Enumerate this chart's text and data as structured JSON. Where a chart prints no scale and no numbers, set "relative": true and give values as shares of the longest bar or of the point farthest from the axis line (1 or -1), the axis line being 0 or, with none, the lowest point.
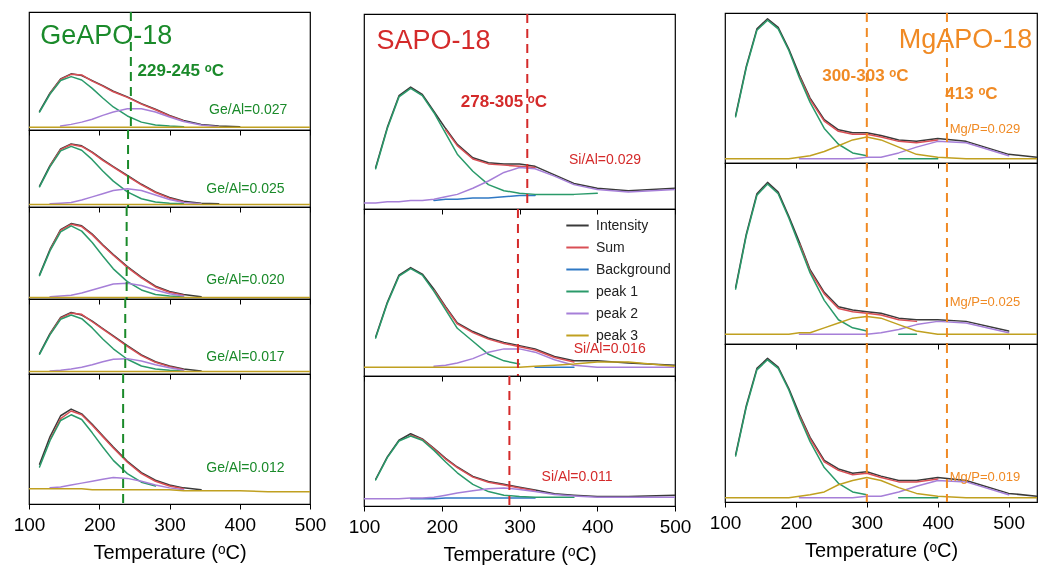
{
  "chart_data": [
    {
      "type": "line",
      "relative": true,
      "title": "GeAPO-18",
      "annotations": [
        "229-245 ᵒC",
        "Ge/Al=0.027"
      ],
      "x": [
        100,
        115,
        130,
        145,
        160,
        175,
        190,
        205,
        220,
        240,
        260,
        280,
        300,
        320,
        345,
        370,
        400,
        440,
        500
      ],
      "xlim": [
        100,
        500
      ],
      "xticks": [
        100,
        200,
        300,
        400,
        500
      ],
      "tick_labels": false,
      "ref_lines": [
        {
          "axis": "x",
          "value": 245,
          "color": "#1a8a2a",
          "line_style": "dashed"
        }
      ],
      "series": [
        {
          "color": "#3a3a3a",
          "values": [
            null,
            0.33,
            0.66,
            0.91,
            1.0,
            0.97,
            0.88,
            0.79,
            0.69,
            0.59,
            0.47,
            0.37,
            0.26,
            0.17,
            0.1,
            0.07,
            0.06,
            null,
            null
          ]
        },
        {
          "color": "#d94f55",
          "values": [
            null,
            null,
            0.65,
            0.9,
            0.99,
            0.98,
            0.87,
            0.78,
            0.68,
            0.58,
            0.46,
            0.36,
            0.25,
            0.16,
            null,
            null,
            null,
            null,
            null
          ]
        },
        {
          "color": "#2a9a6a",
          "values": [
            null,
            0.32,
            0.64,
            0.88,
            0.95,
            0.89,
            0.74,
            0.57,
            0.41,
            0.25,
            0.14,
            0.09,
            0.07,
            0.06,
            null,
            null,
            null,
            null,
            null
          ]
        },
        {
          "color": "#a67fd8",
          "values": [
            null,
            null,
            null,
            0.07,
            0.1,
            0.14,
            0.19,
            0.26,
            0.32,
            0.38,
            0.38,
            0.32,
            0.23,
            0.15,
            0.09,
            0.06,
            null,
            null,
            null
          ]
        },
        {
          "color": "#c0a020",
          "values": [
            0.05,
            0.05,
            0.05,
            0.05,
            0.05,
            0.05,
            0.05,
            0.05,
            0.05,
            0.05,
            0.05,
            0.05,
            0.05,
            0.05,
            0.05,
            0.05,
            0.05,
            0.05,
            0.05
          ]
        }
      ]
    },
    {
      "type": "line",
      "relative": true,
      "annotations": [
        "Ge/Al=0.025"
      ],
      "x": [
        100,
        115,
        130,
        145,
        160,
        175,
        190,
        205,
        220,
        240,
        260,
        280,
        300,
        320,
        345,
        370,
        400,
        440,
        500
      ],
      "xlim": [
        100,
        500
      ],
      "xticks": [
        100,
        200,
        300,
        400,
        500
      ],
      "tick_labels": false,
      "ref_lines": [
        {
          "axis": "x",
          "value": 241,
          "color": "#1a8a2a",
          "line_style": "dashed"
        }
      ],
      "series": [
        {
          "color": "#3a3a3a",
          "values": [
            null,
            0.33,
            0.66,
            0.92,
            1.0,
            0.97,
            0.87,
            0.75,
            0.64,
            0.5,
            0.36,
            0.24,
            0.15,
            0.09,
            0.06,
            0.05,
            null,
            null,
            null
          ]
        },
        {
          "color": "#d94f55",
          "values": [
            null,
            null,
            0.65,
            0.91,
            0.99,
            0.96,
            0.86,
            0.74,
            0.63,
            0.49,
            0.35,
            0.23,
            0.14,
            0.08,
            null,
            null,
            null,
            null,
            null
          ]
        },
        {
          "color": "#2a9a6a",
          "values": [
            null,
            0.32,
            0.64,
            0.89,
            0.96,
            0.9,
            0.75,
            0.57,
            0.41,
            0.24,
            0.13,
            0.08,
            0.06,
            0.05,
            null,
            null,
            null,
            null,
            null
          ]
        },
        {
          "color": "#a67fd8",
          "values": [
            null,
            null,
            0.05,
            0.06,
            0.07,
            0.11,
            0.16,
            0.21,
            0.26,
            0.29,
            0.26,
            0.19,
            0.12,
            0.07,
            0.05,
            null,
            null,
            null,
            null
          ]
        },
        {
          "color": "#c0a020",
          "values": [
            0.04,
            0.04,
            0.04,
            0.04,
            0.04,
            0.04,
            0.04,
            0.04,
            0.04,
            0.04,
            0.04,
            0.04,
            0.04,
            0.04,
            0.04,
            0.04,
            0.04,
            0.04,
            0.04
          ]
        }
      ]
    },
    {
      "type": "line",
      "relative": true,
      "annotations": [
        "Ge/Al=0.020"
      ],
      "x": [
        100,
        115,
        130,
        145,
        160,
        175,
        190,
        205,
        220,
        240,
        260,
        280,
        300,
        320,
        345,
        370,
        400,
        440,
        500
      ],
      "xlim": [
        100,
        500
      ],
      "xticks": [
        100,
        200,
        300,
        400,
        500
      ],
      "tick_labels": false,
      "ref_lines": [
        {
          "axis": "x",
          "value": 239,
          "color": "#1a8a2a",
          "line_style": "dashed"
        }
      ],
      "series": [
        {
          "color": "#3a3a3a",
          "values": [
            null,
            0.32,
            0.66,
            0.92,
            1.0,
            0.97,
            0.86,
            0.72,
            0.59,
            0.43,
            0.29,
            0.17,
            0.1,
            0.06,
            0.03,
            null,
            null,
            null,
            null
          ]
        },
        {
          "color": "#d94f55",
          "values": [
            null,
            null,
            0.65,
            0.91,
            0.99,
            0.96,
            0.85,
            0.71,
            0.58,
            0.42,
            0.28,
            0.16,
            0.09,
            0.05,
            null,
            null,
            null,
            null,
            null
          ]
        },
        {
          "color": "#2a9a6a",
          "values": [
            null,
            0.31,
            0.64,
            0.89,
            0.97,
            0.9,
            0.75,
            0.57,
            0.4,
            0.23,
            0.12,
            0.06,
            0.04,
            0.03,
            null,
            null,
            null,
            null,
            null
          ]
        },
        {
          "color": "#a67fd8",
          "values": [
            null,
            null,
            0.03,
            0.04,
            0.05,
            0.08,
            0.12,
            0.16,
            0.2,
            0.21,
            0.18,
            0.12,
            0.07,
            0.04,
            null,
            null,
            null,
            null,
            null
          ]
        },
        {
          "color": "#c0a020",
          "values": [
            0.02,
            0.02,
            0.02,
            0.02,
            0.02,
            0.02,
            0.02,
            0.02,
            0.02,
            0.02,
            0.02,
            0.02,
            0.02,
            0.02,
            0.02,
            0.02,
            0.02,
            0.02,
            0.02
          ]
        }
      ]
    },
    {
      "type": "line",
      "relative": true,
      "annotations": [
        "Ge/Al=0.017"
      ],
      "x": [
        100,
        115,
        130,
        145,
        160,
        175,
        190,
        205,
        220,
        240,
        260,
        280,
        300,
        320,
        345,
        370,
        400,
        440,
        500
      ],
      "xlim": [
        100,
        500
      ],
      "xticks": [
        100,
        200,
        300,
        400,
        500
      ],
      "tick_labels": false,
      "ref_lines": [
        {
          "axis": "x",
          "value": 237,
          "color": "#1a8a2a",
          "line_style": "dashed"
        }
      ],
      "series": [
        {
          "color": "#3a3a3a",
          "values": [
            null,
            0.33,
            0.66,
            0.92,
            1.0,
            0.96,
            0.86,
            0.74,
            0.62,
            0.46,
            0.31,
            0.2,
            0.13,
            0.08,
            0.05,
            null,
            null,
            null,
            null
          ]
        },
        {
          "color": "#d94f55",
          "values": [
            null,
            null,
            0.65,
            0.91,
            0.99,
            0.97,
            0.85,
            0.73,
            0.61,
            0.45,
            0.3,
            0.19,
            0.12,
            0.07,
            null,
            null,
            null,
            null,
            null
          ]
        },
        {
          "color": "#2a9a6a",
          "values": [
            null,
            0.32,
            0.64,
            0.89,
            0.96,
            0.9,
            0.75,
            0.57,
            0.41,
            0.24,
            0.13,
            0.08,
            0.06,
            0.05,
            null,
            null,
            null,
            null,
            null
          ]
        },
        {
          "color": "#a67fd8",
          "values": [
            null,
            null,
            0.05,
            0.06,
            0.08,
            0.11,
            0.15,
            0.2,
            0.24,
            0.25,
            0.21,
            0.15,
            0.1,
            0.06,
            null,
            null,
            null,
            null,
            null
          ]
        },
        {
          "color": "#c0a020",
          "values": [
            0.04,
            0.04,
            0.04,
            0.04,
            0.04,
            0.04,
            0.04,
            0.04,
            0.04,
            0.04,
            0.04,
            0.04,
            0.04,
            0.04,
            0.04,
            0.04,
            0.04,
            0.04,
            0.04
          ]
        }
      ]
    },
    {
      "type": "line",
      "relative": true,
      "annotations": [
        "Ge/Al=0.012"
      ],
      "x": [
        100,
        115,
        130,
        145,
        160,
        175,
        190,
        205,
        220,
        240,
        260,
        280,
        300,
        320,
        345,
        370,
        400,
        440,
        500
      ],
      "xlim": [
        100,
        500
      ],
      "xticks": [
        100,
        200,
        300,
        400,
        500
      ],
      "tick_labels": "x",
      "xlabel": "Temperature (ᵒC)",
      "ref_lines": [
        {
          "axis": "x",
          "value": 234,
          "color": "#1a8a2a",
          "line_style": "dashed"
        }
      ],
      "series": [
        {
          "color": "#3a3a3a",
          "values": [
            null,
            0.42,
            0.71,
            0.93,
            1.0,
            0.95,
            0.84,
            0.72,
            0.6,
            0.45,
            0.33,
            0.25,
            0.2,
            0.17,
            0.15,
            null,
            null,
            null,
            null
          ]
        },
        {
          "color": "#d94f55",
          "values": [
            null,
            null,
            0.68,
            0.9,
            0.98,
            0.94,
            0.83,
            0.71,
            0.59,
            0.44,
            0.32,
            0.24,
            0.19,
            0.16,
            null,
            null,
            null,
            null,
            null
          ]
        },
        {
          "color": "#2a9a6a",
          "values": [
            null,
            0.39,
            0.67,
            0.88,
            0.94,
            0.89,
            0.75,
            0.6,
            0.46,
            0.32,
            0.23,
            0.19,
            null,
            null,
            null,
            null,
            null,
            null,
            null
          ]
        },
        {
          "color": "#a67fd8",
          "values": [
            null,
            null,
            0.17,
            0.18,
            0.2,
            0.22,
            0.24,
            0.26,
            0.28,
            0.27,
            0.24,
            0.2,
            0.17,
            0.15,
            null,
            null,
            null,
            null,
            null
          ]
        },
        {
          "color": "#c0a020",
          "values": [
            0.16,
            0.16,
            0.16,
            0.16,
            0.16,
            0.16,
            0.15,
            0.15,
            0.15,
            0.15,
            0.15,
            0.15,
            0.15,
            0.14,
            0.14,
            0.14,
            0.14,
            0.13,
            0.13
          ]
        }
      ]
    },
    {
      "type": "line",
      "relative": true,
      "title": "SAPO-18",
      "annotations": [
        "278-305 ᵒC",
        "Si/Al=0.029"
      ],
      "x": [
        100,
        115,
        130,
        145,
        160,
        175,
        190,
        205,
        220,
        240,
        260,
        280,
        300,
        320,
        345,
        370,
        400,
        440,
        500
      ],
      "xlim": [
        100,
        500
      ],
      "xticks": [
        100,
        200,
        300,
        400,
        500
      ],
      "tick_labels": false,
      "ref_lines": [
        {
          "axis": "x",
          "value": 310,
          "color": "#d42a2a",
          "line_style": "dashed"
        }
      ],
      "series": [
        {
          "color": "#3a3a3a",
          "values": [
            null,
            0.34,
            0.67,
            0.93,
            1.0,
            0.94,
            0.8,
            0.66,
            0.53,
            0.42,
            0.38,
            0.37,
            0.37,
            0.35,
            0.28,
            0.21,
            0.17,
            0.15,
            0.17
          ]
        },
        {
          "color": "#d94f55",
          "values": [
            null,
            null,
            null,
            null,
            null,
            null,
            null,
            0.65,
            0.52,
            0.41,
            0.37,
            0.36,
            0.35,
            0.34,
            null,
            null,
            null,
            null,
            null
          ]
        },
        {
          "color": "#2f78c4",
          "values": [
            null,
            null,
            null,
            null,
            null,
            null,
            0.07,
            0.08,
            0.08,
            0.09,
            0.09,
            0.1,
            0.11,
            0.11,
            null,
            null,
            null,
            null,
            null
          ]
        },
        {
          "color": "#2a9a6a",
          "values": [
            null,
            0.33,
            0.66,
            0.92,
            0.99,
            0.93,
            0.79,
            0.62,
            0.45,
            0.31,
            0.2,
            0.15,
            0.13,
            0.12,
            0.12,
            0.12,
            0.13,
            null,
            null
          ]
        },
        {
          "color": "#a67fd8",
          "values": [
            0.05,
            0.05,
            0.06,
            0.06,
            0.07,
            0.07,
            0.08,
            0.1,
            0.12,
            0.17,
            0.23,
            0.3,
            0.34,
            0.33,
            0.27,
            0.2,
            0.16,
            0.14,
            0.16
          ]
        }
      ]
    },
    {
      "type": "line",
      "relative": true,
      "annotations": [
        "Si/Al=0.016"
      ],
      "x": [
        100,
        115,
        130,
        145,
        160,
        175,
        190,
        205,
        220,
        240,
        260,
        280,
        300,
        320,
        345,
        370,
        400,
        440,
        500
      ],
      "xlim": [
        100,
        500
      ],
      "xticks": [
        100,
        200,
        300,
        400,
        500
      ],
      "tick_labels": false,
      "legend": "top right",
      "ref_lines": [
        {
          "axis": "x",
          "value": 298,
          "color": "#d42a2a",
          "line_style": "dashed"
        }
      ],
      "series": [
        {
          "name": "Intensity",
          "color": "#3a3a3a",
          "values": [
            null,
            0.36,
            0.68,
            0.93,
            1.0,
            0.94,
            0.8,
            0.64,
            0.49,
            0.41,
            0.35,
            0.31,
            0.28,
            0.25,
            0.18,
            0.14,
            0.14,
            0.12,
            0.1
          ]
        },
        {
          "name": "Sum",
          "color": "#d94f55",
          "values": [
            null,
            null,
            null,
            null,
            null,
            null,
            0.79,
            0.63,
            0.48,
            0.4,
            0.34,
            0.3,
            0.27,
            0.24,
            0.17,
            0.13,
            null,
            null,
            null
          ]
        },
        {
          "name": "Background",
          "color": "#2f78c4",
          "values": [
            null,
            null,
            null,
            null,
            null,
            null,
            null,
            null,
            null,
            null,
            null,
            null,
            null,
            0.08,
            0.08,
            0.08,
            null,
            null,
            null
          ]
        },
        {
          "name": "peak 1",
          "color": "#2a9a6a",
          "values": [
            null,
            0.35,
            0.67,
            0.92,
            0.99,
            0.93,
            0.78,
            0.61,
            0.44,
            0.32,
            0.2,
            0.14,
            0.11,
            null,
            null,
            null,
            null,
            null,
            null
          ]
        },
        {
          "name": "peak 2",
          "color": "#a67fd8",
          "values": [
            null,
            null,
            null,
            null,
            null,
            null,
            0.09,
            0.1,
            0.12,
            0.16,
            0.22,
            0.25,
            0.25,
            0.22,
            0.15,
            0.1,
            0.08,
            0.08,
            0.08
          ]
        },
        {
          "name": "peak 3",
          "color": "#c0a020",
          "values": [
            0.08,
            0.08,
            0.08,
            0.08,
            0.08,
            0.08,
            0.08,
            0.08,
            0.08,
            0.08,
            0.08,
            0.08,
            0.08,
            0.09,
            0.1,
            0.11,
            0.13,
            0.13,
            0.09
          ]
        }
      ]
    },
    {
      "type": "line",
      "relative": true,
      "annotations": [
        "Si/Al=0.011"
      ],
      "x": [
        100,
        115,
        130,
        145,
        160,
        175,
        190,
        205,
        220,
        240,
        260,
        280,
        300,
        320,
        345,
        370,
        400,
        440,
        500
      ],
      "xlim": [
        100,
        500
      ],
      "xticks": [
        100,
        200,
        300,
        400,
        500
      ],
      "tick_labels": "x",
      "xlabel": "Temperature (ᵒC)",
      "ref_lines": [
        {
          "axis": "x",
          "value": 287,
          "color": "#d42a2a",
          "line_style": "dashed"
        }
      ],
      "series": [
        {
          "color": "#3a3a3a",
          "values": [
            null,
            0.37,
            0.68,
            0.91,
            1.0,
            0.93,
            0.8,
            0.66,
            0.54,
            0.41,
            0.34,
            0.3,
            0.26,
            0.22,
            0.17,
            0.15,
            0.13,
            0.13,
            0.15
          ]
        },
        {
          "color": "#d94f55",
          "values": [
            null,
            null,
            null,
            null,
            0.98,
            0.92,
            0.79,
            0.65,
            0.53,
            0.4,
            0.33,
            0.29,
            0.25,
            0.21,
            null,
            null,
            null,
            null,
            null
          ]
        },
        {
          "color": "#2f78c4",
          "values": [
            null,
            null,
            null,
            null,
            0.1,
            0.1,
            0.1,
            0.11,
            0.11,
            0.11,
            0.11,
            0.11,
            0.11,
            0.11,
            null,
            null,
            null,
            null,
            null
          ]
        },
        {
          "color": "#2a9a6a",
          "values": [
            null,
            0.36,
            0.67,
            0.9,
            0.97,
            0.91,
            0.77,
            0.61,
            0.46,
            0.3,
            0.2,
            0.15,
            0.13,
            0.12,
            0.12,
            0.12,
            null,
            null,
            null
          ]
        },
        {
          "color": "#a67fd8",
          "values": [
            0.1,
            0.1,
            0.1,
            0.1,
            0.11,
            0.11,
            0.12,
            0.15,
            0.18,
            0.21,
            0.24,
            0.25,
            0.23,
            0.2,
            0.16,
            0.14,
            0.12,
            0.12,
            0.12
          ]
        }
      ]
    },
    {
      "type": "line",
      "relative": true,
      "title": "MgAPO-18",
      "annotations": [
        "300-303 ᵒC",
        "413 ᵒC",
        "Mg/P=0.029"
      ],
      "x": [
        100,
        115,
        130,
        145,
        160,
        175,
        190,
        205,
        220,
        240,
        260,
        280,
        300,
        320,
        345,
        370,
        400,
        440,
        500,
        540
      ],
      "xlim": [
        100,
        540
      ],
      "xticks": [
        100,
        200,
        300,
        400,
        500
      ],
      "tick_labels": false,
      "ref_lines": [
        {
          "axis": "x",
          "value": 300,
          "color": "#f08a24",
          "line_style": "dashed"
        },
        {
          "axis": "x",
          "value": 413,
          "color": "#f08a24",
          "line_style": "dashed"
        }
      ],
      "series": [
        {
          "color": "#3a3a3a",
          "values": [
            null,
            0.33,
            0.67,
            0.93,
            1.0,
            0.94,
            0.79,
            0.61,
            0.45,
            0.3,
            0.23,
            0.21,
            0.21,
            0.19,
            0.16,
            0.15,
            0.17,
            0.15,
            0.06,
            0.04
          ]
        },
        {
          "color": "#d94f55",
          "values": [
            null,
            null,
            null,
            null,
            null,
            null,
            null,
            0.6,
            0.44,
            0.29,
            0.22,
            0.2,
            0.2,
            0.18,
            0.15,
            0.14,
            0.16,
            null,
            null,
            null
          ]
        },
        {
          "color": "#2a9a6a",
          "values": [
            null,
            0.32,
            0.66,
            0.92,
            0.99,
            0.93,
            0.78,
            0.59,
            0.42,
            0.24,
            0.13,
            0.07,
            0.05,
            null,
            0.03,
            0.03,
            0.03,
            null,
            null,
            null
          ]
        },
        {
          "color": "#a67fd8",
          "values": [
            null,
            null,
            null,
            null,
            null,
            null,
            null,
            0.03,
            0.03,
            0.03,
            0.03,
            0.03,
            0.04,
            0.04,
            0.07,
            0.11,
            0.15,
            0.14,
            0.05,
            null
          ]
        },
        {
          "color": "#c0a020",
          "values": [
            0.03,
            0.03,
            0.03,
            0.03,
            0.03,
            0.03,
            0.03,
            0.04,
            0.05,
            0.08,
            0.12,
            0.16,
            0.18,
            0.16,
            0.11,
            0.06,
            0.04,
            0.03,
            0.03,
            0.03
          ]
        }
      ]
    },
    {
      "type": "line",
      "relative": true,
      "annotations": [
        "Mg/P=0.025"
      ],
      "x": [
        100,
        115,
        130,
        145,
        160,
        175,
        190,
        205,
        220,
        240,
        260,
        280,
        300,
        320,
        345,
        370,
        400,
        440,
        500,
        540
      ],
      "xlim": [
        100,
        540
      ],
      "xticks": [
        100,
        200,
        300,
        400,
        500
      ],
      "tick_labels": false,
      "ref_lines": [
        {
          "axis": "x",
          "value": 300,
          "color": "#f08a24",
          "line_style": "dashed"
        },
        {
          "axis": "x",
          "value": 413,
          "color": "#f08a24",
          "line_style": "dashed"
        }
      ],
      "series": [
        {
          "color": "#3a3a3a",
          "values": [
            null,
            0.35,
            0.68,
            0.93,
            1.0,
            0.94,
            0.79,
            0.63,
            0.46,
            0.32,
            0.23,
            0.21,
            0.2,
            0.19,
            0.16,
            0.15,
            0.15,
            0.14,
            0.08,
            null
          ]
        },
        {
          "color": "#d94f55",
          "values": [
            null,
            null,
            null,
            null,
            null,
            null,
            null,
            0.62,
            0.45,
            0.31,
            0.22,
            0.2,
            0.19,
            0.18,
            0.15,
            0.14,
            null,
            null,
            null,
            null
          ]
        },
        {
          "color": "#2a9a6a",
          "values": [
            null,
            0.34,
            0.67,
            0.92,
            0.99,
            0.93,
            0.78,
            0.61,
            0.44,
            0.27,
            0.15,
            0.1,
            0.08,
            null,
            0.06,
            0.06,
            null,
            null,
            null,
            null
          ]
        },
        {
          "color": "#a67fd8",
          "values": [
            null,
            null,
            null,
            null,
            null,
            null,
            null,
            0.06,
            0.06,
            0.06,
            0.06,
            0.06,
            0.06,
            0.07,
            0.09,
            0.12,
            0.14,
            0.13,
            0.07,
            null
          ]
        },
        {
          "color": "#c0a020",
          "values": [
            0.06,
            0.06,
            0.06,
            0.06,
            0.06,
            0.06,
            0.06,
            0.07,
            0.07,
            0.1,
            0.13,
            0.16,
            0.17,
            0.16,
            0.12,
            0.08,
            0.06,
            0.06,
            0.06,
            0.06
          ]
        }
      ]
    },
    {
      "type": "line",
      "relative": true,
      "annotations": [
        "Mg/P=0.019"
      ],
      "x": [
        100,
        115,
        130,
        145,
        160,
        175,
        190,
        205,
        220,
        240,
        260,
        280,
        300,
        320,
        345,
        370,
        400,
        440,
        500,
        540
      ],
      "xlim": [
        100,
        540
      ],
      "xticks": [
        100,
        200,
        300,
        400,
        500
      ],
      "tick_labels": "x",
      "xlabel": "Temperature (ᵒC)",
      "ref_lines": [
        {
          "axis": "x",
          "value": 300,
          "color": "#f08a24",
          "line_style": "dashed"
        },
        {
          "axis": "x",
          "value": 413,
          "color": "#f08a24",
          "line_style": "dashed"
        }
      ],
      "series": [
        {
          "color": "#3a3a3a",
          "values": [
            null,
            0.33,
            0.67,
            0.93,
            1.0,
            0.94,
            0.79,
            0.61,
            0.45,
            0.29,
            0.23,
            0.2,
            0.21,
            0.18,
            0.15,
            0.15,
            0.17,
            0.15,
            0.06,
            0.04
          ]
        },
        {
          "color": "#d94f55",
          "values": [
            null,
            null,
            null,
            null,
            null,
            null,
            null,
            0.6,
            0.44,
            0.28,
            0.22,
            0.19,
            0.2,
            0.17,
            0.14,
            0.14,
            0.16,
            null,
            null,
            null
          ]
        },
        {
          "color": "#2a9a6a",
          "values": [
            null,
            0.32,
            0.66,
            0.92,
            0.99,
            0.93,
            0.78,
            0.59,
            0.42,
            0.24,
            0.13,
            0.07,
            0.05,
            null,
            0.03,
            0.03,
            0.03,
            null,
            null,
            null
          ]
        },
        {
          "color": "#a67fd8",
          "values": [
            null,
            null,
            null,
            null,
            null,
            null,
            null,
            0.03,
            0.03,
            0.03,
            0.03,
            0.03,
            0.04,
            0.04,
            0.07,
            0.11,
            0.15,
            0.14,
            0.05,
            null
          ]
        },
        {
          "color": "#c0a020",
          "values": [
            0.03,
            0.03,
            0.03,
            0.03,
            0.03,
            0.03,
            0.03,
            0.04,
            0.05,
            0.07,
            0.12,
            0.15,
            0.17,
            0.15,
            0.1,
            0.06,
            0.04,
            0.03,
            0.03,
            0.03
          ]
        }
      ]
    }
  ]
}
